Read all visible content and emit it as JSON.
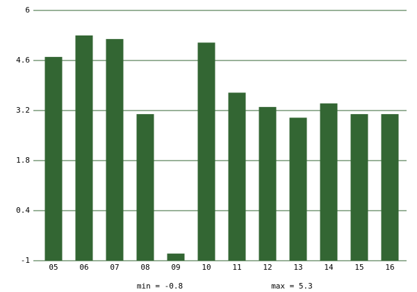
{
  "chart_data": {
    "type": "bar",
    "categories": [
      "05",
      "06",
      "07",
      "08",
      "09",
      "10",
      "11",
      "12",
      "13",
      "14",
      "15",
      "16"
    ],
    "values": [
      4.7,
      5.3,
      5.2,
      3.1,
      -0.8,
      5.1,
      3.7,
      3.3,
      3.0,
      3.4,
      3.1,
      3.1
    ],
    "color": "#336633",
    "ylim": [
      -1,
      6
    ],
    "yticks": [
      -1,
      0.4,
      1.8,
      3.2,
      4.6,
      6
    ],
    "grid": true,
    "grid_color": "#336633",
    "annotations": [
      "min = -0.8",
      "max = 5.3"
    ]
  }
}
